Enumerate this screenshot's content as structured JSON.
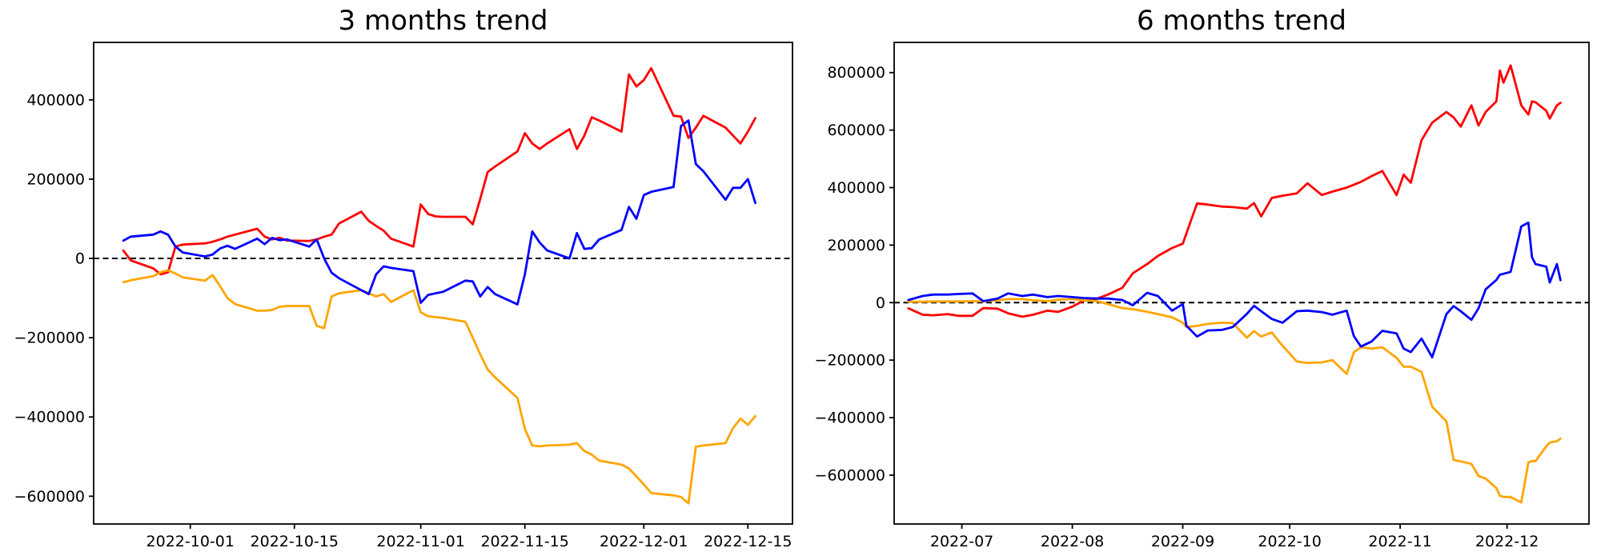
{
  "figure": {
    "background": "#ffffff",
    "text_color": "#000000",
    "axis_color": "#000000",
    "zero_line_color": "#000000"
  },
  "chart_data": [
    {
      "type": "line",
      "title": "3 months trend",
      "xlabel": "",
      "ylabel": "",
      "grid": false,
      "legend": null,
      "xlim": [
        "2022-09-18",
        "2022-12-21"
      ],
      "ylim": [
        -670000,
        545000
      ],
      "zero_line": {
        "style": "dashed",
        "color": "#000000"
      },
      "x_ticks": [
        {
          "date": "2022-10-01",
          "label": "2022-10-01"
        },
        {
          "date": "2022-10-15",
          "label": "2022-10-15"
        },
        {
          "date": "2022-11-01",
          "label": "2022-11-01"
        },
        {
          "date": "2022-11-15",
          "label": "2022-11-15"
        },
        {
          "date": "2022-12-01",
          "label": "2022-12-01"
        },
        {
          "date": "2022-12-15",
          "label": "2022-12-15"
        }
      ],
      "y_ticks": [
        {
          "value": 400000,
          "label": "400000"
        },
        {
          "value": 200000,
          "label": "200000"
        },
        {
          "value": 0,
          "label": "0"
        },
        {
          "value": -200000,
          "label": "−200000"
        },
        {
          "value": -400000,
          "label": "−400000"
        },
        {
          "value": -600000,
          "label": "−600000"
        }
      ],
      "dates": [
        "2022-09-22",
        "2022-09-23",
        "2022-09-26",
        "2022-09-27",
        "2022-09-28",
        "2022-09-29",
        "2022-09-30",
        "2022-10-03",
        "2022-10-04",
        "2022-10-05",
        "2022-10-06",
        "2022-10-07",
        "2022-10-10",
        "2022-10-11",
        "2022-10-12",
        "2022-10-13",
        "2022-10-14",
        "2022-10-17",
        "2022-10-18",
        "2022-10-19",
        "2022-10-20",
        "2022-10-21",
        "2022-10-24",
        "2022-10-25",
        "2022-10-26",
        "2022-10-27",
        "2022-10-28",
        "2022-10-31",
        "2022-11-01",
        "2022-11-02",
        "2022-11-03",
        "2022-11-04",
        "2022-11-07",
        "2022-11-08",
        "2022-11-09",
        "2022-11-10",
        "2022-11-11",
        "2022-11-14",
        "2022-11-15",
        "2022-11-16",
        "2022-11-17",
        "2022-11-18",
        "2022-11-21",
        "2022-11-22",
        "2022-11-23",
        "2022-11-24",
        "2022-11-25",
        "2022-11-28",
        "2022-11-29",
        "2022-11-30",
        "2022-12-01",
        "2022-12-02",
        "2022-12-05",
        "2022-12-06",
        "2022-12-07",
        "2022-12-08",
        "2022-12-09",
        "2022-12-12",
        "2022-12-13",
        "2022-12-14",
        "2022-12-15",
        "2022-12-16"
      ],
      "series": [
        {
          "name": "red",
          "color": "#ff0000",
          "values": [
            20000,
            -5000,
            -25000,
            -40000,
            -35000,
            30000,
            35000,
            38000,
            42000,
            48000,
            55000,
            60000,
            75000,
            55000,
            48000,
            52000,
            45000,
            44000,
            48000,
            55000,
            60000,
            88000,
            118000,
            95000,
            82000,
            70000,
            50000,
            30000,
            136000,
            112000,
            106000,
            105000,
            105000,
            86000,
            150000,
            218000,
            232000,
            270000,
            316000,
            290000,
            276000,
            290000,
            326000,
            276000,
            310000,
            356000,
            348000,
            320000,
            464000,
            434000,
            450000,
            480000,
            360000,
            358000,
            304000,
            330000,
            360000,
            330000,
            310000,
            290000,
            320000,
            354000
          ]
        },
        {
          "name": "blue",
          "color": "#0000ff",
          "values": [
            45000,
            55000,
            60000,
            68000,
            60000,
            30000,
            15000,
            5000,
            10000,
            25000,
            32000,
            24000,
            50000,
            36000,
            52000,
            46000,
            48000,
            30000,
            48000,
            0,
            -36000,
            -50000,
            -80000,
            -90000,
            -40000,
            -20000,
            -24000,
            -32000,
            -112000,
            -92000,
            -88000,
            -84000,
            -56000,
            -58000,
            -96000,
            -72000,
            -90000,
            -116000,
            -40000,
            68000,
            40000,
            20000,
            0,
            64000,
            24000,
            26000,
            48000,
            72000,
            130000,
            100000,
            160000,
            168000,
            180000,
            334000,
            348000,
            238000,
            220000,
            148000,
            178000,
            178000,
            200000,
            140000
          ]
        },
        {
          "name": "orange",
          "color": "#ffa500",
          "values": [
            -60000,
            -55000,
            -45000,
            -35000,
            -30000,
            -38000,
            -48000,
            -56000,
            -42000,
            -70000,
            -100000,
            -115000,
            -132000,
            -132000,
            -130000,
            -122000,
            -120000,
            -120000,
            -170000,
            -176000,
            -96000,
            -88000,
            -80000,
            -88000,
            -96000,
            -90000,
            -110000,
            -80000,
            -136000,
            -146000,
            -148000,
            -150000,
            -160000,
            -200000,
            -242000,
            -280000,
            -300000,
            -352000,
            -430000,
            -472000,
            -474000,
            -472000,
            -470000,
            -466000,
            -486000,
            -495000,
            -510000,
            -520000,
            -530000,
            -550000,
            -570000,
            -592000,
            -598000,
            -602000,
            -618000,
            -475000,
            -472000,
            -466000,
            -428000,
            -404000,
            -420000,
            -398000
          ]
        }
      ]
    },
    {
      "type": "line",
      "title": "6 months trend",
      "xlabel": "",
      "ylabel": "",
      "grid": false,
      "legend": null,
      "xlim": [
        "2022-06-12",
        "2022-12-24"
      ],
      "ylim": [
        -770000,
        905000
      ],
      "zero_line": {
        "style": "dashed",
        "color": "#000000"
      },
      "x_ticks": [
        {
          "date": "2022-07-01",
          "label": "2022-07"
        },
        {
          "date": "2022-08-01",
          "label": "2022-08"
        },
        {
          "date": "2022-09-01",
          "label": "2022-09"
        },
        {
          "date": "2022-10-01",
          "label": "2022-10"
        },
        {
          "date": "2022-11-01",
          "label": "2022-11"
        },
        {
          "date": "2022-12-01",
          "label": "2022-12"
        }
      ],
      "y_ticks": [
        {
          "value": 800000,
          "label": "800000"
        },
        {
          "value": 600000,
          "label": "600000"
        },
        {
          "value": 400000,
          "label": "400000"
        },
        {
          "value": 200000,
          "label": "200000"
        },
        {
          "value": 0,
          "label": "0"
        },
        {
          "value": -200000,
          "label": "−200000"
        },
        {
          "value": -400000,
          "label": "−400000"
        },
        {
          "value": -600000,
          "label": "−600000"
        }
      ],
      "dates": [
        "2022-06-16",
        "2022-06-20",
        "2022-06-23",
        "2022-06-27",
        "2022-06-30",
        "2022-07-04",
        "2022-07-07",
        "2022-07-11",
        "2022-07-14",
        "2022-07-18",
        "2022-07-21",
        "2022-07-25",
        "2022-07-28",
        "2022-08-01",
        "2022-08-04",
        "2022-08-08",
        "2022-08-11",
        "2022-08-15",
        "2022-08-18",
        "2022-08-22",
        "2022-08-25",
        "2022-08-29",
        "2022-09-01",
        "2022-09-02",
        "2022-09-05",
        "2022-09-08",
        "2022-09-12",
        "2022-09-15",
        "2022-09-19",
        "2022-09-21",
        "2022-09-23",
        "2022-09-26",
        "2022-09-29",
        "2022-10-03",
        "2022-10-06",
        "2022-10-10",
        "2022-10-13",
        "2022-10-17",
        "2022-10-19",
        "2022-10-21",
        "2022-10-24",
        "2022-10-27",
        "2022-10-31",
        "2022-11-02",
        "2022-11-04",
        "2022-11-07",
        "2022-11-10",
        "2022-11-14",
        "2022-11-16",
        "2022-11-18",
        "2022-11-21",
        "2022-11-23",
        "2022-11-25",
        "2022-11-28",
        "2022-11-29",
        "2022-11-30",
        "2022-12-02",
        "2022-12-05",
        "2022-12-07",
        "2022-12-08",
        "2022-12-09",
        "2022-12-12",
        "2022-12-13",
        "2022-12-15",
        "2022-12-16"
      ],
      "series": [
        {
          "name": "red",
          "color": "#ff0000",
          "values": [
            -20000,
            -42000,
            -44000,
            -40000,
            -46000,
            -46000,
            -19000,
            -21000,
            -37000,
            -49000,
            -42000,
            -28000,
            -32000,
            -14000,
            6000,
            14000,
            28000,
            51000,
            102000,
            134000,
            162000,
            190000,
            205000,
            240000,
            345000,
            341000,
            334000,
            332000,
            327000,
            346000,
            300000,
            364000,
            372000,
            380000,
            415000,
            374000,
            386000,
            400000,
            410000,
            420000,
            440000,
            458000,
            374000,
            445000,
            417000,
            565000,
            626000,
            663000,
            644000,
            612000,
            686000,
            616000,
            663000,
            700000,
            807000,
            765000,
            825000,
            686000,
            654000,
            700000,
            697000,
            667000,
            640000,
            686000,
            695000
          ]
        },
        {
          "name": "blue",
          "color": "#0000ff",
          "values": [
            9000,
            23000,
            28000,
            28000,
            30000,
            32000,
            5000,
            14000,
            32000,
            23000,
            28000,
            19000,
            23000,
            19000,
            16000,
            14000,
            14000,
            9000,
            -9000,
            34000,
            23000,
            -28000,
            -5000,
            -80000,
            -118000,
            -97000,
            -95000,
            -85000,
            -39000,
            -11000,
            -30000,
            -57000,
            -70000,
            -30000,
            -28000,
            -33000,
            -42000,
            -28000,
            -116000,
            -153000,
            -135000,
            -98000,
            -107000,
            -160000,
            -172000,
            -125000,
            -190000,
            -40000,
            -12000,
            -30000,
            -60000,
            -20000,
            46000,
            79000,
            97000,
            100000,
            107000,
            265000,
            278000,
            158000,
            134000,
            125000,
            70000,
            134000,
            78000
          ]
        },
        {
          "name": "orange",
          "color": "#ffa500",
          "values": [
            3000,
            3000,
            4000,
            4000,
            4000,
            5000,
            5000,
            8000,
            12000,
            12000,
            8000,
            5000,
            10000,
            12000,
            8000,
            5000,
            -5000,
            -19000,
            -23000,
            -32000,
            -40000,
            -51000,
            -70000,
            -85000,
            -81000,
            -74000,
            -70000,
            -71000,
            -122000,
            -99000,
            -118000,
            -104000,
            -150000,
            -205000,
            -210000,
            -208000,
            -200000,
            -248000,
            -173000,
            -155000,
            -160000,
            -155000,
            -192000,
            -223000,
            -223000,
            -241000,
            -362000,
            -413000,
            -547000,
            -552000,
            -561000,
            -603000,
            -612000,
            -645000,
            -672000,
            -676000,
            -676000,
            -695000,
            -556000,
            -551000,
            -551000,
            -500000,
            -487000,
            -482000,
            -473000
          ]
        }
      ]
    }
  ]
}
